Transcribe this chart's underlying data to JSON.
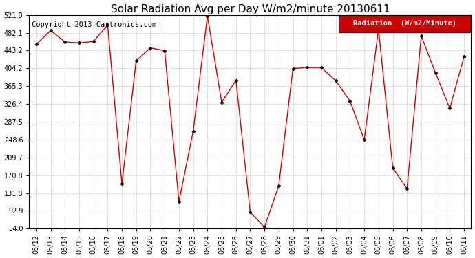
{
  "title": "Solar Radiation Avg per Day W/m2/minute 20130611",
  "copyright_text": "Copyright 2013 Cartronics.com",
  "legend_label": "Radiation  (W/m2/Minute)",
  "dates": [
    "05/12",
    "05/13",
    "05/14",
    "05/15",
    "05/16",
    "05/17",
    "05/18",
    "05/19",
    "05/20",
    "05/21",
    "05/22",
    "05/23",
    "05/24",
    "05/25",
    "05/26",
    "05/27",
    "05/28",
    "05/29",
    "05/30",
    "05/31",
    "06/01",
    "06/02",
    "06/03",
    "06/04",
    "06/05",
    "06/06",
    "06/07",
    "06/08",
    "06/09",
    "06/10",
    "06/11"
  ],
  "values": [
    457.0,
    487.0,
    462.0,
    460.0,
    463.0,
    499.0,
    152.0,
    421.0,
    449.0,
    443.0,
    113.0,
    267.0,
    519.0,
    330.0,
    378.0,
    90.0,
    57.0,
    148.0,
    404.0,
    406.0,
    406.0,
    377.0,
    333.0,
    248.0,
    490.0,
    187.0,
    141.0,
    475.0,
    394.0,
    317.0,
    430.0
  ],
  "line_color": "#cc0000",
  "marker_color": "#000000",
  "bg_color": "#ffffff",
  "grid_color": "#aaaaaa",
  "ylim_min": 54.0,
  "ylim_max": 521.0,
  "yticks": [
    54.0,
    92.9,
    131.8,
    170.8,
    209.7,
    248.6,
    287.5,
    326.4,
    365.3,
    404.2,
    443.2,
    482.1,
    521.0
  ],
  "title_fontsize": 11,
  "tick_fontsize": 7,
  "legend_fontsize": 7.5,
  "copyright_fontsize": 7.5
}
